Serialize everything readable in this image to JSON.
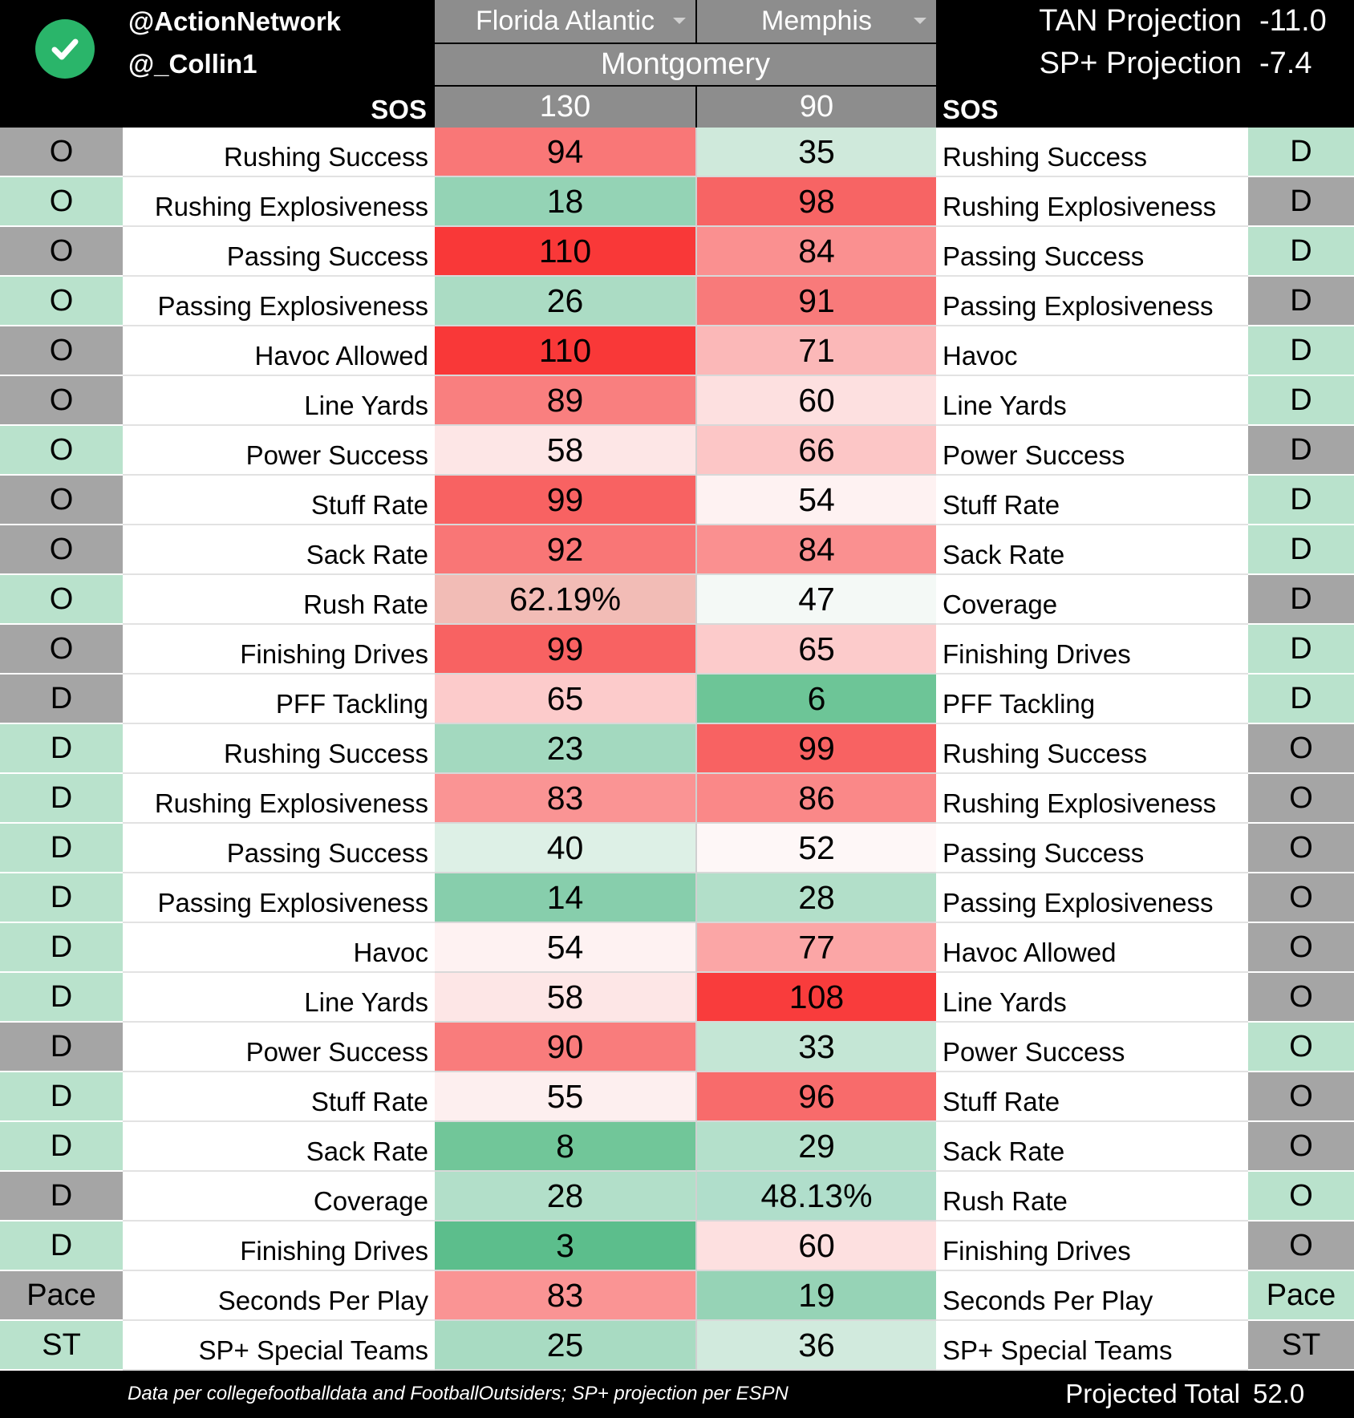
{
  "header": {
    "handle_1": "@ActionNetwork",
    "handle_2": "@_Collin1",
    "team_a": "Florida Atlantic",
    "team_b": "Memphis",
    "venue": "Montgomery",
    "sos_label": "SOS",
    "sos_a": "130",
    "sos_b": "90",
    "projections": [
      {
        "label": "TAN Projection",
        "value": "-11.0"
      },
      {
        "label": "SP+ Projection",
        "value": "-7.4"
      }
    ]
  },
  "rows": [
    {
      "unit_a": "O",
      "metric_a": "Rushing Success",
      "val_a": "94",
      "val_b": "35",
      "metric_b": "Rushing Success",
      "unit_b": "D",
      "unit_a_color": "#a5a5a5",
      "unit_b_color": "#b9e2cc",
      "color_a": "#f97777",
      "color_b": "#cfe9db"
    },
    {
      "unit_a": "O",
      "metric_a": "Rushing Explosiveness",
      "val_a": "18",
      "val_b": "98",
      "metric_b": "Rushing Explosiveness",
      "unit_b": "D",
      "unit_a_color": "#b9e2cc",
      "unit_b_color": "#a5a5a5",
      "color_a": "#94d3b5",
      "color_b": "#f76464"
    },
    {
      "unit_a": "O",
      "metric_a": "Passing Success",
      "val_a": "110",
      "val_b": "84",
      "metric_b": "Passing Success",
      "unit_b": "D",
      "unit_a_color": "#a5a5a5",
      "unit_b_color": "#b9e2cc",
      "color_a": "#f93838",
      "color_b": "#fa9090"
    },
    {
      "unit_a": "O",
      "metric_a": "Passing Explosiveness",
      "val_a": "26",
      "val_b": "91",
      "metric_b": "Passing Explosiveness",
      "unit_b": "D",
      "unit_a_color": "#b9e2cc",
      "unit_b_color": "#a5a5a5",
      "color_a": "#abdcc4",
      "color_b": "#f87a7a"
    },
    {
      "unit_a": "O",
      "metric_a": "Havoc Allowed",
      "val_a": "110",
      "val_b": "71",
      "metric_b": "Havoc",
      "unit_b": "D",
      "unit_a_color": "#a5a5a5",
      "unit_b_color": "#b9e2cc",
      "color_a": "#f93838",
      "color_b": "#fbb8b8"
    },
    {
      "unit_a": "O",
      "metric_a": "Line Yards",
      "val_a": "89",
      "val_b": "60",
      "metric_b": "Line Yards",
      "unit_b": "D",
      "unit_a_color": "#a5a5a5",
      "unit_b_color": "#b9e2cc",
      "color_a": "#f97f7f",
      "color_b": "#fde0e0"
    },
    {
      "unit_a": "O",
      "metric_a": "Power Success",
      "val_a": "58",
      "val_b": "66",
      "metric_b": "Power Success",
      "unit_b": "D",
      "unit_a_color": "#b9e2cc",
      "unit_b_color": "#a5a5a5",
      "color_a": "#fde6e6",
      "color_b": "#fcc6c6"
    },
    {
      "unit_a": "O",
      "metric_a": "Stuff Rate",
      "val_a": "99",
      "val_b": "54",
      "metric_b": "Stuff Rate",
      "unit_b": "D",
      "unit_a_color": "#a5a5a5",
      "unit_b_color": "#b9e2cc",
      "color_a": "#f86262",
      "color_b": "#fef2f2"
    },
    {
      "unit_a": "O",
      "metric_a": "Sack Rate",
      "val_a": "92",
      "val_b": "84",
      "metric_b": "Sack Rate",
      "unit_b": "D",
      "unit_a_color": "#a5a5a5",
      "unit_b_color": "#b9e2cc",
      "color_a": "#f97676",
      "color_b": "#fa9090"
    },
    {
      "unit_a": "O",
      "metric_a": "Rush Rate",
      "val_a": "62.19%",
      "val_b": "47",
      "metric_b": "Coverage",
      "unit_b": "D",
      "unit_a_color": "#b9e2cc",
      "unit_b_color": "#a5a5a5",
      "color_a": "#f2bcb6",
      "color_b": "#f4f9f6"
    },
    {
      "unit_a": "O",
      "metric_a": "Finishing Drives",
      "val_a": "99",
      "val_b": "65",
      "metric_b": "Finishing Drives",
      "unit_b": "D",
      "unit_a_color": "#a5a5a5",
      "unit_b_color": "#b9e2cc",
      "color_a": "#f86262",
      "color_b": "#fccbcb"
    },
    {
      "unit_a": "D",
      "metric_a": "PFF Tackling",
      "val_a": "65",
      "val_b": "6",
      "metric_b": "PFF Tackling",
      "unit_b": "D",
      "unit_a_color": "#a5a5a5",
      "unit_b_color": "#b9e2cc",
      "color_a": "#fccbcb",
      "color_b": "#6dc597"
    },
    {
      "unit_a": "D",
      "metric_a": "Rushing Success",
      "val_a": "23",
      "val_b": "99",
      "metric_b": "Rushing Success",
      "unit_b": "O",
      "unit_a_color": "#b9e2cc",
      "unit_b_color": "#a5a5a5",
      "color_a": "#a3d9bf",
      "color_b": "#f86262"
    },
    {
      "unit_a": "D",
      "metric_a": "Rushing Explosiveness",
      "val_a": "83",
      "val_b": "86",
      "metric_b": "Rushing Explosiveness",
      "unit_b": "O",
      "unit_a_color": "#b9e2cc",
      "unit_b_color": "#a5a5a5",
      "color_a": "#fa9494",
      "color_b": "#fa8888"
    },
    {
      "unit_a": "D",
      "metric_a": "Passing Success",
      "val_a": "40",
      "val_b": "52",
      "metric_b": "Passing Success",
      "unit_b": "O",
      "unit_a_color": "#b9e2cc",
      "unit_b_color": "#a5a5a5",
      "color_a": "#ddf0e6",
      "color_b": "#fef7f7"
    },
    {
      "unit_a": "D",
      "metric_a": "Passing Explosiveness",
      "val_a": "14",
      "val_b": "28",
      "metric_b": "Passing Explosiveness",
      "unit_b": "O",
      "unit_a_color": "#b9e2cc",
      "unit_b_color": "#a5a5a5",
      "color_a": "#87ceac",
      "color_b": "#b2dfc9"
    },
    {
      "unit_a": "D",
      "metric_a": "Havoc",
      "val_a": "54",
      "val_b": "77",
      "metric_b": "Havoc Allowed",
      "unit_b": "O",
      "unit_a_color": "#b9e2cc",
      "unit_b_color": "#a5a5a5",
      "color_a": "#fef2f2",
      "color_b": "#fba6a6"
    },
    {
      "unit_a": "D",
      "metric_a": "Line Yards",
      "val_a": "58",
      "val_b": "108",
      "metric_b": "Line Yards",
      "unit_b": "O",
      "unit_a_color": "#b9e2cc",
      "unit_b_color": "#a5a5a5",
      "color_a": "#fde6e6",
      "color_b": "#f93c3c"
    },
    {
      "unit_a": "D",
      "metric_a": "Power Success",
      "val_a": "90",
      "val_b": "33",
      "metric_b": "Power Success",
      "unit_b": "O",
      "unit_a_color": "#a5a5a5",
      "unit_b_color": "#b9e2cc",
      "color_a": "#f97c7c",
      "color_b": "#c4e6d5"
    },
    {
      "unit_a": "D",
      "metric_a": "Stuff Rate",
      "val_a": "55",
      "val_b": "96",
      "metric_b": "Stuff Rate",
      "unit_b": "O",
      "unit_a_color": "#b9e2cc",
      "unit_b_color": "#a5a5a5",
      "color_a": "#fdefef",
      "color_b": "#f86b6b"
    },
    {
      "unit_a": "D",
      "metric_a": "Sack Rate",
      "val_a": "8",
      "val_b": "29",
      "metric_b": "Sack Rate",
      "unit_b": "O",
      "unit_a_color": "#b9e2cc",
      "unit_b_color": "#a5a5a5",
      "color_a": "#71c699",
      "color_b": "#b4e0cb"
    },
    {
      "unit_a": "D",
      "metric_a": "Coverage",
      "val_a": "28",
      "val_b": "48.13%",
      "metric_b": "Rush Rate",
      "unit_b": "O",
      "unit_a_color": "#a5a5a5",
      "unit_b_color": "#b9e2cc",
      "color_a": "#b2dfc9",
      "color_b": "#b0decb"
    },
    {
      "unit_a": "D",
      "metric_a": "Finishing Drives",
      "val_a": "3",
      "val_b": "60",
      "metric_b": "Finishing Drives",
      "unit_b": "O",
      "unit_a_color": "#b9e2cc",
      "unit_b_color": "#a5a5a5",
      "color_a": "#5cbe8c",
      "color_b": "#fde0e0"
    },
    {
      "unit_a": "Pace",
      "metric_a": "Seconds Per Play",
      "val_a": "83",
      "val_b": "19",
      "metric_b": "Seconds Per Play",
      "unit_b": "Pace",
      "unit_a_color": "#a5a5a5",
      "unit_b_color": "#b9e2cc",
      "color_a": "#fa9494",
      "color_b": "#96d3b6"
    },
    {
      "unit_a": "ST",
      "metric_a": "SP+ Special Teams",
      "val_a": "25",
      "val_b": "36",
      "metric_b": "SP+ Special Teams",
      "unit_b": "ST",
      "unit_a_color": "#b9e2cc",
      "unit_b_color": "#a5a5a5",
      "color_a": "#a8dbc2",
      "color_b": "#d1eadd"
    }
  ],
  "footer": {
    "note": "Data per collegefootballdata and FootballOutsiders; SP+ projection per ESPN",
    "total_label": "Projected Total",
    "total_value": "52.0"
  },
  "colors": {
    "header_bg": "#8d8d8d",
    "logo_green": "#2ab56a",
    "unit_grey": "#a5a5a5",
    "unit_green": "#b9e2cc"
  },
  "icons": {
    "logo": "check-circle-icon",
    "dropdown": "dropdown-arrow-icon"
  }
}
